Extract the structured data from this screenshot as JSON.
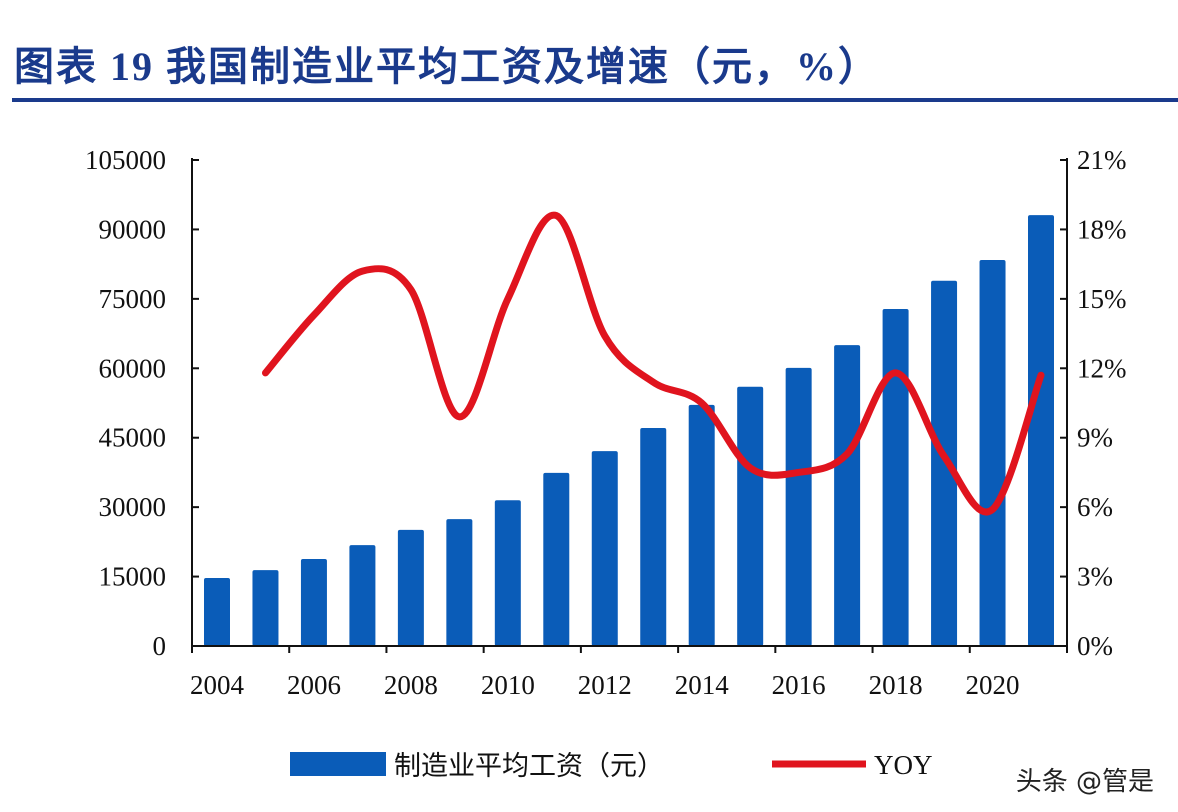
{
  "chart_data": {
    "type": "bar",
    "title": "图表 19   我国制造业平均工资及增速（元，%）",
    "categories": [
      "2004",
      "2005",
      "2006",
      "2007",
      "2008",
      "2009",
      "2010",
      "2011",
      "2012",
      "2013",
      "2014",
      "2015",
      "2016",
      "2017",
      "2018",
      "2019",
      "2020",
      "2021"
    ],
    "x_tick_labels": [
      "2004",
      "2006",
      "2008",
      "2010",
      "2012",
      "2014",
      "2016",
      "2018",
      "2020"
    ],
    "series": [
      {
        "name": "制造业平均工资（元）",
        "type": "bar",
        "axis": "left",
        "color": "#0a5cb8",
        "values": [
          14700,
          16400,
          18800,
          21800,
          25100,
          27400,
          31500,
          37400,
          42100,
          47100,
          52100,
          56000,
          60100,
          65000,
          72800,
          78900,
          83400,
          93100
        ]
      },
      {
        "name": "YOY",
        "type": "line",
        "axis": "right",
        "color": "#e0141e",
        "values": [
          null,
          11.8,
          14.3,
          16.2,
          15.4,
          9.9,
          15.0,
          18.6,
          13.4,
          11.4,
          10.5,
          7.7,
          7.5,
          8.3,
          11.8,
          8.2,
          5.9,
          11.7
        ]
      }
    ],
    "y_left": {
      "ylim": [
        0,
        105000
      ],
      "ticks": [
        "0",
        "15000",
        "30000",
        "45000",
        "60000",
        "75000",
        "90000",
        "105000"
      ]
    },
    "y_right": {
      "ylim": [
        0,
        21
      ],
      "ticks": [
        "0%",
        "3%",
        "6%",
        "9%",
        "12%",
        "15%",
        "18%",
        "21%"
      ]
    },
    "legend": "bottom",
    "grid": false
  },
  "watermark": "头条 @管是"
}
